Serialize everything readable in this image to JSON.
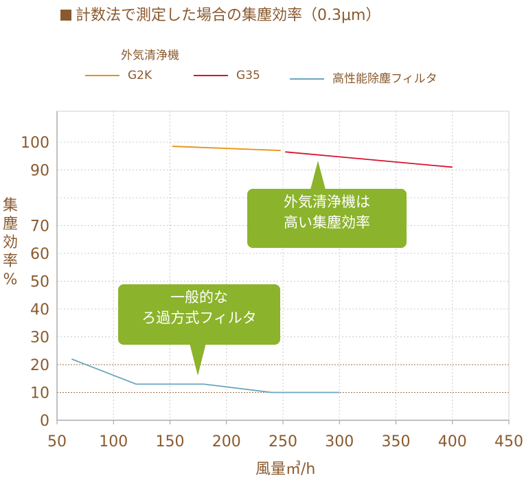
{
  "title": "■計数法で測定した場合の集塵効率（0.3μm）",
  "legend_group": "外気清浄機",
  "legend": [
    {
      "name": "G2K",
      "color": "#e8900e"
    },
    {
      "name": "G35",
      "color": "#d8112f"
    },
    {
      "name": "高性能除塵フィルタ",
      "color": "#6aa5c0"
    }
  ],
  "ylabel": "集塵効率%",
  "xlabel": "風量㎥/h",
  "callouts": {
    "upper": [
      "外気清浄機は",
      "高い集塵効率"
    ],
    "lower": [
      "一般的な",
      "ろ過方式フィルタ"
    ]
  },
  "chart_data": {
    "type": "line",
    "title": "■計数法で測定した場合の集塵効率（0.3μm）",
    "xlabel": "風量㎥/h",
    "ylabel": "集塵効率%",
    "xlim": [
      50,
      450
    ],
    "ylim": [
      0,
      100
    ],
    "xticks": [
      50,
      100,
      150,
      200,
      250,
      300,
      350,
      400,
      450
    ],
    "yticks": [
      0,
      10,
      20,
      30,
      40,
      50,
      60,
      70,
      80,
      90,
      100
    ],
    "ytick_labels": [
      "0",
      "10",
      "20",
      "30",
      "40",
      "50",
      "60",
      "70",
      "",
      "90",
      "100"
    ],
    "grid": "dotted",
    "series": [
      {
        "name": "G2K",
        "color": "#e8900e",
        "points": [
          [
            152,
            98.5
          ],
          [
            248,
            97
          ]
        ]
      },
      {
        "name": "G35",
        "color": "#d8112f",
        "points": [
          [
            252,
            96.5
          ],
          [
            400,
            91
          ]
        ]
      },
      {
        "name": "高性能除塵フィルタ",
        "color": "#6aa5c0",
        "points": [
          [
            63,
            22
          ],
          [
            120,
            13
          ],
          [
            180,
            13
          ],
          [
            240,
            10
          ],
          [
            300,
            10
          ]
        ]
      }
    ]
  }
}
